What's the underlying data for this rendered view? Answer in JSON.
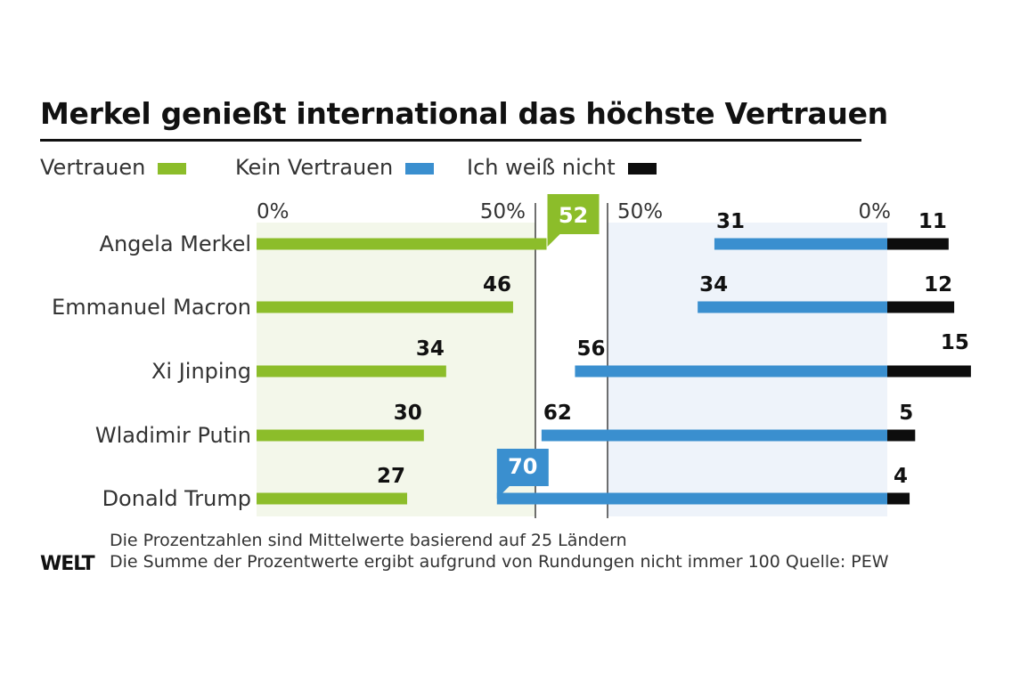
{
  "title": "Merkel genießt international das höchste Vertrauen",
  "legend": [
    {
      "label": "Vertrauen",
      "color": "#8cbd2a"
    },
    {
      "label": "Kein Vertrauen",
      "color": "#3a8fcf"
    },
    {
      "label": "Ich weiß nicht",
      "color": "#0d0d0d"
    }
  ],
  "axis_labels": {
    "left_zero": "0%",
    "left_fifty": "50%",
    "right_fifty": "50%",
    "right_zero": "0%"
  },
  "chart_data": {
    "type": "bar",
    "title": "Merkel genießt international das höchste Vertrauen",
    "categories": [
      "Angela Merkel",
      "Emmanuel Macron",
      "Xi Jinping",
      "Wladimir Putin",
      "Donald Trump"
    ],
    "series": [
      {
        "name": "Vertrauen",
        "values": [
          52,
          46,
          34,
          30,
          27
        ]
      },
      {
        "name": "Kein Vertrauen",
        "values": [
          31,
          34,
          56,
          62,
          70
        ]
      },
      {
        "name": "Ich weiß nicht",
        "values": [
          11,
          12,
          15,
          5,
          4
        ]
      }
    ],
    "highlight": {
      "Vertrauen": "Angela Merkel",
      "Kein Vertrauen": "Donald Trump"
    },
    "xlim": [
      0,
      100
    ],
    "legend_position": "top"
  },
  "footnotes": [
    "Die Prozentzahlen sind Mittelwerte basierend auf 25 Ländern",
    "Die Summe der Prozentwerte ergibt aufgrund von Rundungen nicht immer 100  Quelle: PEW"
  ],
  "logo": "WELT"
}
